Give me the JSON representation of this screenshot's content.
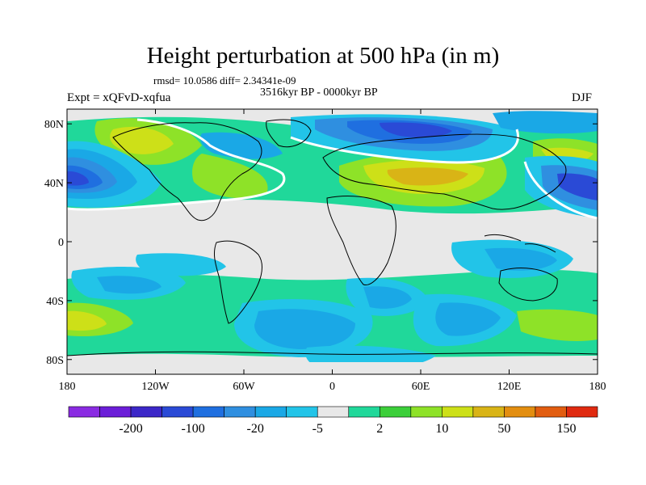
{
  "title": "Height perturbation at 500 hPa (in m)",
  "stats_line": "rmsd= 10.0586 diff= 2.34341e-09",
  "period_line": "3516kyr BP - 0000kyr BP",
  "experiment_label": "Expt = xQFvD-xqfua",
  "season_label": "DJF",
  "map": {
    "projection": "cylindrical equidistant",
    "lon_range": [
      -180,
      180
    ],
    "lat_range": [
      -90,
      90
    ],
    "lat_ticks": [
      {
        "value": 80,
        "label": "80N"
      },
      {
        "value": 40,
        "label": "40N"
      },
      {
        "value": 0,
        "label": "0"
      },
      {
        "value": -40,
        "label": "40S"
      },
      {
        "value": -80,
        "label": "80S"
      }
    ],
    "lon_ticks": [
      {
        "value": -180,
        "label": "180"
      },
      {
        "value": -120,
        "label": "120W"
      },
      {
        "value": -60,
        "label": "60W"
      },
      {
        "value": 0,
        "label": "0"
      },
      {
        "value": 60,
        "label": "60E"
      },
      {
        "value": 120,
        "label": "120E"
      },
      {
        "value": 180,
        "label": "180"
      }
    ]
  },
  "colorbar": {
    "colors": [
      "#8a2be2",
      "#6b1ed8",
      "#3c27c8",
      "#2a4ad6",
      "#1f6fe0",
      "#2f8fe0",
      "#1aa8e6",
      "#22c4e8",
      "#e8e8e8",
      "#20d89a",
      "#3ccf3a",
      "#8ee228",
      "#cde018",
      "#d9b416",
      "#e38e10",
      "#e25d10",
      "#e02a10"
    ],
    "labels": [
      {
        "after_index": 1,
        "text": "-200"
      },
      {
        "after_index": 3,
        "text": "-100"
      },
      {
        "after_index": 5,
        "text": "-20"
      },
      {
        "after_index": 7,
        "text": "-5"
      },
      {
        "after_index": 9,
        "text": "2"
      },
      {
        "after_index": 11,
        "text": "10"
      },
      {
        "after_index": 13,
        "text": "50"
      },
      {
        "after_index": 15,
        "text": "150"
      }
    ]
  },
  "colors": {
    "gray": "#e8e8e8",
    "land_line": "#000000",
    "zero_line": "#ffffff"
  }
}
